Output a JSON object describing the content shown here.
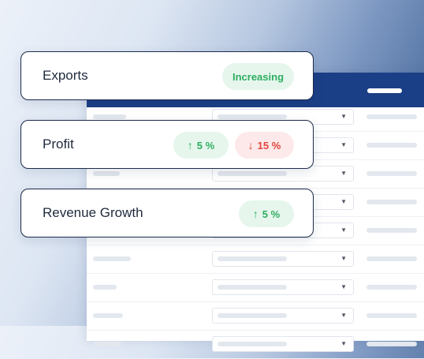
{
  "table": {
    "row_count": 9
  },
  "cards": [
    {
      "label": "Exports",
      "badges": [
        {
          "text": "Increasing",
          "tone": "green",
          "arrow": ""
        }
      ]
    },
    {
      "label": "Profit",
      "badges": [
        {
          "text": "5 %",
          "tone": "green",
          "arrow": "↑"
        },
        {
          "text": "15 %",
          "tone": "red",
          "arrow": "↓"
        }
      ]
    },
    {
      "label": "Revenue Growth",
      "badges": [
        {
          "text": "5 %",
          "tone": "green",
          "arrow": "↑"
        }
      ]
    }
  ],
  "colors": {
    "header": "#1b3f86",
    "positive_bg": "#e6f6ed",
    "positive_fg": "#2fae60",
    "negative_bg": "#fde9e9",
    "negative_fg": "#e2453d",
    "card_border": "#1c2c4a"
  },
  "icons": {
    "up": "arrow-up-icon",
    "down": "arrow-down-icon",
    "caret": "chevron-down-icon"
  }
}
